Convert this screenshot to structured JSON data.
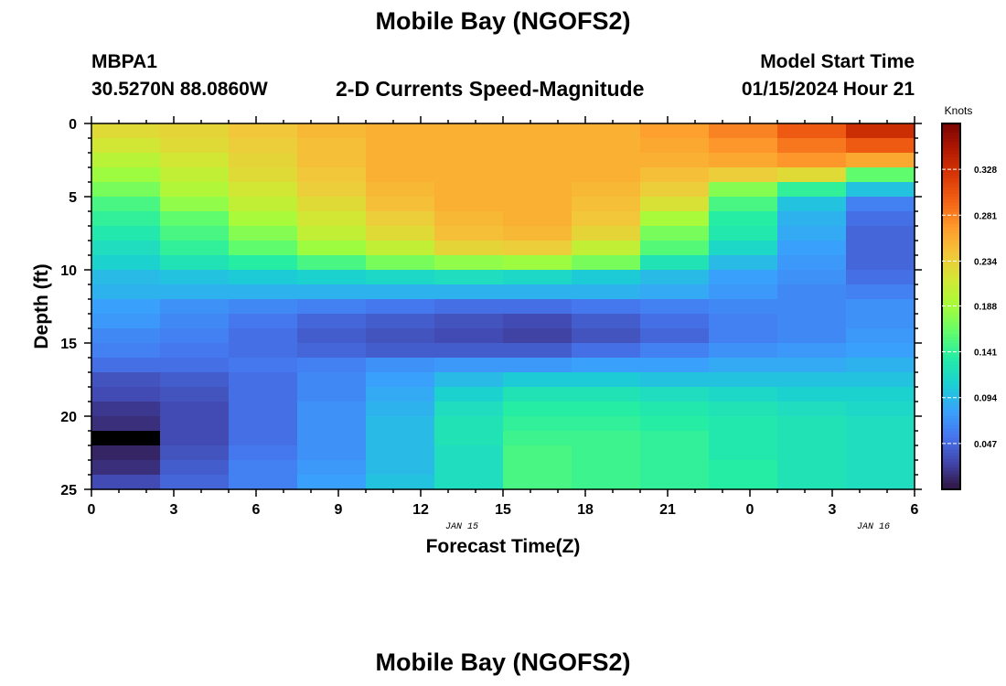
{
  "page": {
    "title_top": "Mobile Bay (NGOFS2)",
    "title_bottom": "Mobile Bay (NGOFS2)",
    "station_id": "MBPA1",
    "station_coords": "30.5270N  88.0860W",
    "product": "2-D Currents Speed-Magnitude",
    "model_start_label": "Model Start Time",
    "model_start_value": "01/15/2024 Hour 21"
  },
  "chart_data": {
    "type": "heatmap",
    "xlabel": "Forecast Time(Z)",
    "ylabel": "Depth (ft)",
    "colorbar_label": "Knots",
    "x_tick_labels": [
      "0",
      "3",
      "6",
      "9",
      "12",
      "15",
      "18",
      "21",
      "0",
      "3",
      "6"
    ],
    "x_date_labels": [
      {
        "label": "JAN 15",
        "at_index": 4.5
      },
      {
        "label": "JAN 16",
        "at_index": 9.5
      }
    ],
    "y_tick_labels": [
      "0",
      "5",
      "10",
      "15",
      "20",
      "25"
    ],
    "ylim": [
      0,
      25
    ],
    "y_reversed": true,
    "colorbar_ticks": [
      "0.047",
      "0.094",
      "0.141",
      "0.188",
      "0.234",
      "0.281",
      "0.328"
    ],
    "color_range": [
      0,
      0.375
    ],
    "colormap": [
      "#30123b",
      "#4145ab",
      "#4675ed",
      "#39a2fc",
      "#1bcfd4",
      "#24eca6",
      "#61fc6c",
      "#a4fc3b",
      "#d1e834",
      "#f3c63a",
      "#fe9b2d",
      "#f36315",
      "#d93806",
      "#b11901",
      "#7a0403"
    ],
    "n_time_columns": 12,
    "n_depth_rows": 25,
    "speeds_knots": [
      [
        0.225,
        0.23,
        0.24,
        0.25,
        0.255,
        0.255,
        0.255,
        0.255,
        0.265,
        0.28,
        0.3,
        0.33
      ],
      [
        0.215,
        0.225,
        0.235,
        0.245,
        0.255,
        0.255,
        0.255,
        0.255,
        0.26,
        0.27,
        0.285,
        0.3
      ],
      [
        0.2,
        0.215,
        0.23,
        0.245,
        0.255,
        0.255,
        0.255,
        0.255,
        0.255,
        0.26,
        0.27,
        0.26
      ],
      [
        0.185,
        0.205,
        0.225,
        0.24,
        0.255,
        0.255,
        0.255,
        0.255,
        0.245,
        0.235,
        0.225,
        0.16
      ],
      [
        0.17,
        0.195,
        0.215,
        0.235,
        0.25,
        0.255,
        0.255,
        0.25,
        0.235,
        0.175,
        0.14,
        0.1
      ],
      [
        0.15,
        0.18,
        0.205,
        0.225,
        0.245,
        0.255,
        0.255,
        0.245,
        0.22,
        0.15,
        0.1,
        0.06
      ],
      [
        0.14,
        0.16,
        0.19,
        0.215,
        0.235,
        0.25,
        0.255,
        0.24,
        0.19,
        0.135,
        0.09,
        0.05
      ],
      [
        0.13,
        0.15,
        0.175,
        0.205,
        0.225,
        0.245,
        0.25,
        0.23,
        0.17,
        0.13,
        0.085,
        0.045
      ],
      [
        0.12,
        0.14,
        0.16,
        0.185,
        0.205,
        0.23,
        0.235,
        0.205,
        0.155,
        0.115,
        0.08,
        0.045
      ],
      [
        0.11,
        0.125,
        0.135,
        0.15,
        0.17,
        0.18,
        0.185,
        0.17,
        0.125,
        0.095,
        0.075,
        0.045
      ],
      [
        0.095,
        0.1,
        0.105,
        0.11,
        0.115,
        0.12,
        0.115,
        0.105,
        0.095,
        0.08,
        0.07,
        0.05
      ],
      [
        0.09,
        0.09,
        0.09,
        0.09,
        0.09,
        0.09,
        0.09,
        0.09,
        0.085,
        0.075,
        0.065,
        0.06
      ],
      [
        0.08,
        0.07,
        0.065,
        0.06,
        0.055,
        0.05,
        0.05,
        0.055,
        0.06,
        0.065,
        0.065,
        0.07
      ],
      [
        0.075,
        0.065,
        0.055,
        0.045,
        0.04,
        0.035,
        0.03,
        0.04,
        0.05,
        0.06,
        0.065,
        0.07
      ],
      [
        0.065,
        0.06,
        0.05,
        0.04,
        0.035,
        0.03,
        0.025,
        0.035,
        0.045,
        0.06,
        0.065,
        0.075
      ],
      [
        0.06,
        0.055,
        0.05,
        0.045,
        0.04,
        0.04,
        0.04,
        0.05,
        0.06,
        0.07,
        0.075,
        0.08
      ],
      [
        0.05,
        0.05,
        0.055,
        0.06,
        0.07,
        0.075,
        0.075,
        0.08,
        0.08,
        0.085,
        0.085,
        0.09
      ],
      [
        0.035,
        0.04,
        0.05,
        0.065,
        0.08,
        0.095,
        0.105,
        0.105,
        0.1,
        0.1,
        0.1,
        0.1
      ],
      [
        0.03,
        0.035,
        0.05,
        0.065,
        0.085,
        0.11,
        0.125,
        0.125,
        0.12,
        0.115,
        0.11,
        0.11
      ],
      [
        0.02,
        0.03,
        0.05,
        0.07,
        0.09,
        0.12,
        0.135,
        0.135,
        0.13,
        0.125,
        0.12,
        0.115
      ],
      [
        0.015,
        0.03,
        0.05,
        0.07,
        0.095,
        0.125,
        0.14,
        0.14,
        0.135,
        0.13,
        0.125,
        0.12
      ],
      [
        0.0,
        0.03,
        0.05,
        0.07,
        0.095,
        0.125,
        0.145,
        0.145,
        0.14,
        0.13,
        0.125,
        0.12
      ],
      [
        0.01,
        0.035,
        0.055,
        0.07,
        0.095,
        0.12,
        0.15,
        0.145,
        0.14,
        0.13,
        0.125,
        0.12
      ],
      [
        0.015,
        0.04,
        0.06,
        0.075,
        0.095,
        0.12,
        0.15,
        0.145,
        0.14,
        0.135,
        0.125,
        0.12
      ],
      [
        0.03,
        0.045,
        0.06,
        0.08,
        0.1,
        0.12,
        0.15,
        0.145,
        0.14,
        0.135,
        0.125,
        0.12
      ]
    ]
  }
}
